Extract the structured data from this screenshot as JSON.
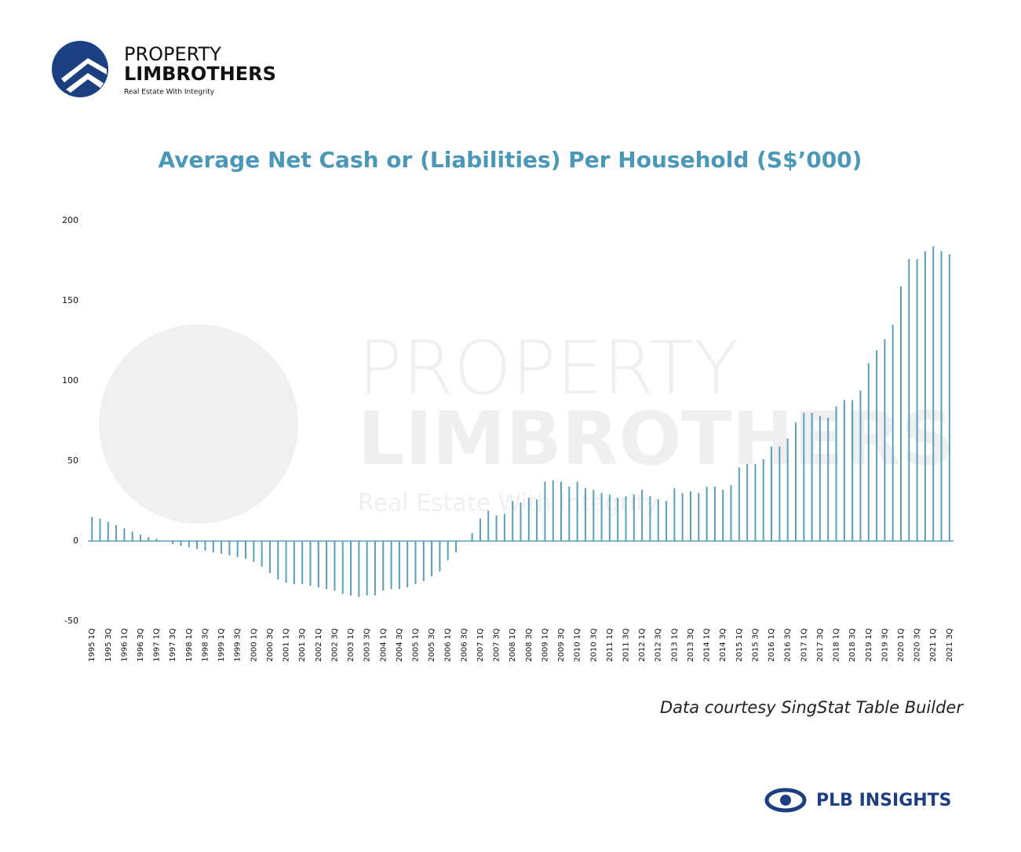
{
  "logo": {
    "line1": "PROPERTY",
    "line2": "LIMBROTHERS",
    "tagline": "Real Estate With Integrity"
  },
  "chart_data": {
    "type": "bar",
    "title": "Average Net Cash or (Liabilities) Per Household (S$’000)",
    "categories": [
      "1995 1Q",
      null,
      "1995 3Q",
      null,
      "1996 1Q",
      null,
      "1996 3Q",
      null,
      "1997 1Q",
      null,
      "1997 3Q",
      null,
      "1998 1Q",
      null,
      "1998 3Q",
      null,
      "1999 1Q",
      null,
      "1999 3Q",
      null,
      "2000 1Q",
      null,
      "2000 3Q",
      null,
      "2001 1Q",
      null,
      "2001 3Q",
      null,
      "2002 1Q",
      null,
      "2002 3Q",
      null,
      "2003 1Q",
      null,
      "2003 3Q",
      null,
      "2004 1Q",
      null,
      "2004 3Q",
      null,
      "2005 1Q",
      null,
      "2005 3Q",
      null,
      "2006 1Q",
      null,
      "2006 3Q",
      null,
      "2007 1Q",
      null,
      "2007 3Q",
      null,
      "2008 1Q",
      null,
      "2008 3Q",
      null,
      "2009 1Q",
      null,
      "2009 3Q",
      null,
      "2010 1Q",
      null,
      "2010 3Q",
      null,
      "2011 1Q",
      null,
      "2011 3Q",
      null,
      "2012 1Q",
      null,
      "2012 3Q",
      null,
      "2013 1Q",
      null,
      "2013 3Q",
      null,
      "2014 1Q",
      null,
      "2014 3Q",
      null,
      "2015 1Q",
      null,
      "2015 3Q",
      null,
      "2016 1Q",
      null,
      "2016 3Q",
      null,
      "2017 1Q",
      null,
      "2017 3Q",
      null,
      "2018 1Q",
      null,
      "2018 3Q",
      null,
      "2019 1Q",
      null,
      "2019 3Q",
      null,
      "2020 1Q",
      null,
      "2020 3Q",
      null,
      "2021 1Q",
      null,
      "2021 3Q"
    ],
    "values": [
      15,
      14,
      12,
      10,
      8,
      6,
      4,
      2.5,
      1.5,
      0,
      -2,
      -3,
      -4,
      -5,
      -6,
      -7,
      -8,
      -9,
      -10,
      -11,
      -13,
      -16,
      -20,
      -24,
      -26,
      -27,
      -27,
      -28,
      -29,
      -30,
      -31,
      -33,
      -34,
      -35,
      -34,
      -34,
      -31,
      -30,
      -30,
      -29,
      -27,
      -25,
      -22,
      -19,
      -12,
      -7,
      0,
      5,
      14,
      19,
      16,
      17,
      25,
      24,
      27,
      26,
      37,
      38,
      37,
      34,
      37,
      33,
      32,
      30,
      29,
      27,
      28,
      29,
      32,
      28,
      26,
      25,
      33,
      30,
      31,
      30,
      34,
      34,
      32,
      35,
      46,
      48,
      48,
      51,
      59,
      59,
      64,
      74,
      80,
      80,
      78,
      77,
      84,
      88,
      88,
      94,
      111,
      119,
      126,
      135,
      159,
      176,
      176,
      181,
      184,
      181,
      179
    ],
    "color": "#5a9fb9",
    "ylim": [
      -50,
      200
    ],
    "yticks": [
      -50,
      0,
      50,
      100,
      150,
      200
    ],
    "grid": false
  },
  "footer": {
    "source": "Data courtesy SingStat Table Builder",
    "brand": "PLB INSIGHTS"
  }
}
